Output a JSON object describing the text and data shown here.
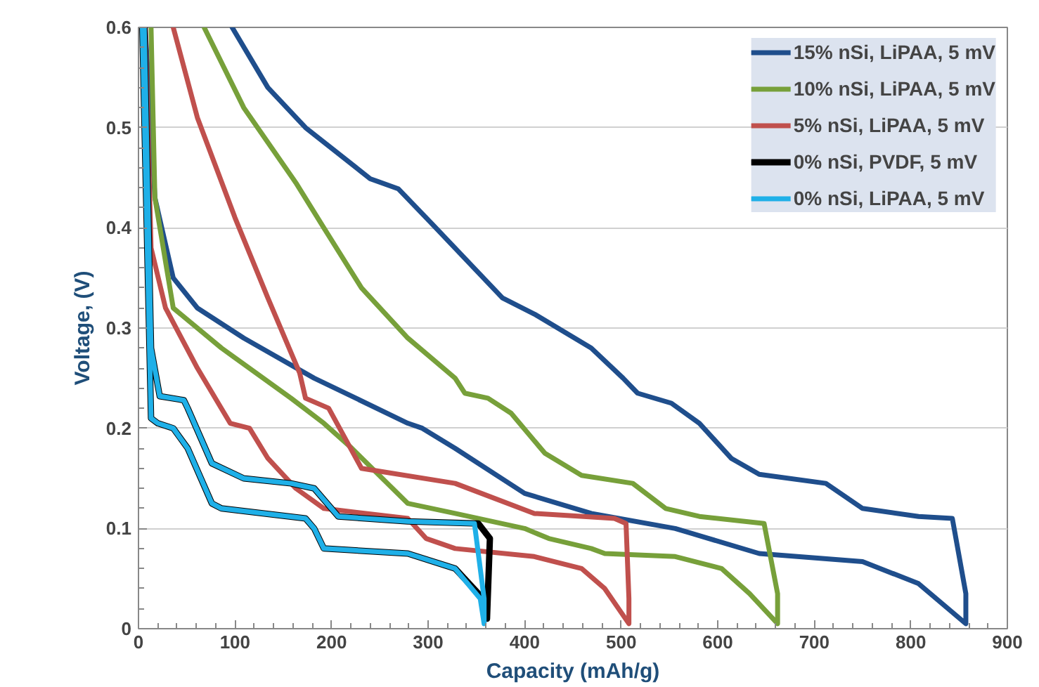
{
  "chart_data": {
    "type": "line",
    "xlabel": "Capacity (mAh/g)",
    "ylabel": "Voltage, (V)",
    "xlim": [
      0,
      900
    ],
    "ylim": [
      0,
      0.6
    ],
    "xticks": [
      0,
      100,
      200,
      300,
      400,
      500,
      600,
      700,
      800,
      900
    ],
    "yticks": [
      0,
      0.1,
      0.2,
      0.3,
      0.4,
      0.5,
      0.6
    ],
    "grid": "y",
    "legend": "top right",
    "line_style": "solid",
    "marker": "none",
    "series": [
      {
        "name": "15% nSi, LiPAA, 5 mV",
        "color": "#1f4e8c",
        "x": [
          7,
          17,
          36,
          61,
          109,
          182,
          279,
          294,
          328,
          400,
          469,
          556,
          643,
          750,
          808,
          857,
          857,
          843,
          808,
          750,
          712,
          643,
          614,
          581,
          552,
          517,
          502,
          469,
          410,
          377,
          304,
          269,
          240,
          173,
          134,
          97
        ],
        "values": [
          0.6,
          0.43,
          0.35,
          0.32,
          0.29,
          0.25,
          0.205,
          0.2,
          0.18,
          0.135,
          0.115,
          0.1,
          0.075,
          0.067,
          0.045,
          0.005,
          0.035,
          0.11,
          0.112,
          0.12,
          0.145,
          0.154,
          0.17,
          0.205,
          0.225,
          0.235,
          0.25,
          0.28,
          0.314,
          0.33,
          0.404,
          0.439,
          0.449,
          0.5,
          0.54,
          0.6
        ]
      },
      {
        "name": "10% nSi, LiPAA, 5 mV",
        "color": "#77a03a",
        "x": [
          13,
          17,
          36,
          86,
          158,
          192,
          221,
          279,
          328,
          400,
          425,
          469,
          483,
          556,
          604,
          633,
          662,
          662,
          648,
          581,
          546,
          512,
          459,
          421,
          386,
          362,
          338,
          328,
          279,
          231,
          192,
          163,
          109,
          68
        ],
        "values": [
          0.6,
          0.43,
          0.32,
          0.28,
          0.23,
          0.205,
          0.18,
          0.125,
          0.115,
          0.1,
          0.09,
          0.08,
          0.075,
          0.072,
          0.06,
          0.035,
          0.005,
          0.035,
          0.105,
          0.112,
          0.12,
          0.145,
          0.153,
          0.175,
          0.215,
          0.23,
          0.235,
          0.25,
          0.29,
          0.34,
          0.4,
          0.445,
          0.52,
          0.6
        ]
      },
      {
        "name": "5% nSi, LiPAA, 5 mV",
        "color": "#c0504d",
        "x": [
          7,
          13,
          28,
          61,
          95,
          115,
          134,
          163,
          192,
          279,
          298,
          328,
          410,
          459,
          483,
          508,
          508,
          505,
          493,
          410,
          328,
          231,
          197,
          173,
          167,
          134,
          100,
          61,
          36
        ],
        "values": [
          0.6,
          0.38,
          0.32,
          0.26,
          0.205,
          0.2,
          0.17,
          0.14,
          0.12,
          0.11,
          0.09,
          0.08,
          0.072,
          0.06,
          0.04,
          0.005,
          0.03,
          0.105,
          0.11,
          0.115,
          0.145,
          0.16,
          0.22,
          0.23,
          0.255,
          0.33,
          0.41,
          0.51,
          0.6
        ]
      },
      {
        "name": "0% nSi, PVDF, 5 mV",
        "color": "#000000",
        "x": [
          4,
          13,
          20,
          36,
          51,
          76,
          86,
          173,
          182,
          192,
          279,
          328,
          357,
          361,
          364,
          352,
          279,
          207,
          182,
          158,
          109,
          76,
          51,
          47,
          22,
          13,
          6
        ],
        "values": [
          0.6,
          0.21,
          0.205,
          0.2,
          0.18,
          0.125,
          0.12,
          0.11,
          0.1,
          0.08,
          0.075,
          0.06,
          0.03,
          0.01,
          0.09,
          0.105,
          0.107,
          0.112,
          0.14,
          0.145,
          0.15,
          0.165,
          0.22,
          0.228,
          0.232,
          0.28,
          0.6
        ]
      },
      {
        "name": "0% nSi, LiPAA, 5 mV",
        "color": "#1fb0e8",
        "x": [
          4,
          13,
          20,
          36,
          51,
          76,
          86,
          173,
          182,
          192,
          279,
          328,
          354,
          358,
          358,
          348,
          279,
          207,
          182,
          158,
          109,
          76,
          51,
          47,
          22,
          13,
          6
        ],
        "values": [
          0.6,
          0.21,
          0.205,
          0.2,
          0.18,
          0.125,
          0.12,
          0.11,
          0.1,
          0.08,
          0.075,
          0.06,
          0.03,
          0.005,
          0.03,
          0.105,
          0.107,
          0.112,
          0.14,
          0.145,
          0.15,
          0.165,
          0.22,
          0.228,
          0.232,
          0.28,
          0.6
        ]
      }
    ]
  }
}
